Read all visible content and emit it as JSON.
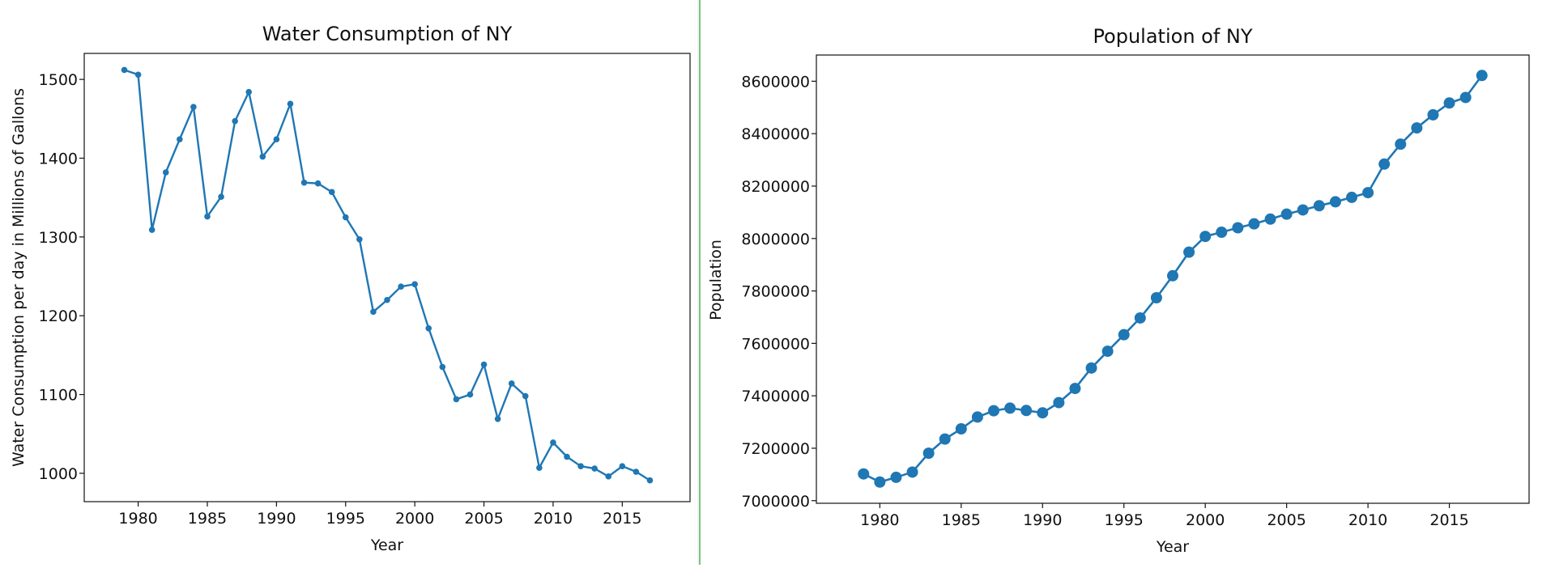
{
  "chart_data": [
    {
      "type": "line",
      "title": "Water Consumption of NY",
      "xlabel": "Year",
      "ylabel": "Water Consumption per day in Millions of Gallons",
      "xlim": [
        1976.1,
        2019.9
      ],
      "ylim": [
        964,
        1533
      ],
      "xticks": [
        1980,
        1985,
        1990,
        1995,
        2000,
        2005,
        2010,
        2015
      ],
      "yticks": [
        1000,
        1100,
        1200,
        1300,
        1400,
        1500
      ],
      "grid": false,
      "legend": "none",
      "color": "#1f77b4",
      "marker": "small-dot",
      "series": [
        {
          "x": [
            1979,
            1980,
            1981,
            1982,
            1983,
            1984,
            1985,
            1986,
            1987,
            1988,
            1989,
            1990,
            1991,
            1992,
            1993,
            1994,
            1995,
            1996,
            1997,
            1998,
            1999,
            2000,
            2001,
            2002,
            2003,
            2004,
            2005,
            2006,
            2007,
            2008,
            2009,
            2010,
            2011,
            2012,
            2013,
            2014,
            2015,
            2016,
            2017
          ],
          "values": [
            1512,
            1506,
            1309,
            1382,
            1424,
            1465,
            1326,
            1351,
            1447,
            1484,
            1402,
            1424,
            1469,
            1369,
            1368,
            1357,
            1325,
            1297,
            1205,
            1220,
            1237,
            1240,
            1184,
            1135,
            1094,
            1100,
            1138,
            1069,
            1114,
            1098,
            1007,
            1039,
            1021,
            1009,
            1006,
            996,
            1009,
            1002,
            991
          ]
        }
      ]
    },
    {
      "type": "line",
      "title": "Population of NY",
      "xlabel": "Year",
      "ylabel": "Population",
      "xlim": [
        1976.1,
        2019.9
      ],
      "ylim": [
        6990000,
        8700000
      ],
      "xticks": [
        1980,
        1985,
        1990,
        1995,
        2000,
        2005,
        2010,
        2015
      ],
      "yticks": [
        7000000,
        7200000,
        7400000,
        7600000,
        7800000,
        8000000,
        8200000,
        8400000,
        8600000
      ],
      "grid": false,
      "legend": "none",
      "color": "#1f77b4",
      "marker": "large-dot",
      "series": [
        {
          "x": [
            1979,
            1980,
            1981,
            1982,
            1983,
            1984,
            1985,
            1986,
            1987,
            1988,
            1989,
            1990,
            1991,
            1992,
            1993,
            1994,
            1995,
            1996,
            1997,
            1998,
            1999,
            2000,
            2001,
            2002,
            2003,
            2004,
            2005,
            2006,
            2007,
            2008,
            2009,
            2010,
            2011,
            2012,
            2013,
            2014,
            2015,
            2016,
            2017
          ],
          "values": [
            7102000,
            7071000,
            7089000,
            7109000,
            7181000,
            7235000,
            7274000,
            7319000,
            7343000,
            7353000,
            7344000,
            7335000,
            7374000,
            7428000,
            7506000,
            7570000,
            7633000,
            7697000,
            7774000,
            7858000,
            7948000,
            8008000,
            8024000,
            8041000,
            8056000,
            8074000,
            8093000,
            8109000,
            8125000,
            8140000,
            8157000,
            8175000,
            8284000,
            8360000,
            8422000,
            8472000,
            8517000,
            8538000,
            8622000
          ]
        }
      ]
    }
  ]
}
